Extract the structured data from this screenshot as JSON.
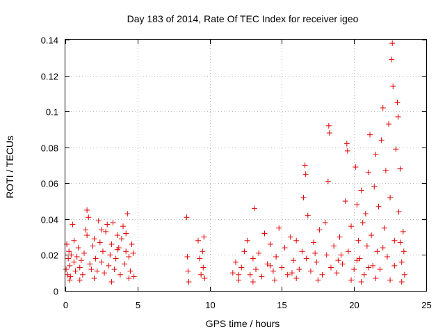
{
  "chart_data": {
    "type": "scatter",
    "title": "Day 183 of 2014, Rate Of TEC Index for receiver igeo",
    "xlabel": "GPS time / hours",
    "ylabel": "ROTI / TECUs",
    "xlim": [
      0,
      25
    ],
    "ylim": [
      0,
      0.14
    ],
    "xticks": [
      0,
      5,
      10,
      15,
      20,
      25
    ],
    "yticks": [
      0,
      0.02,
      0.04,
      0.06,
      0.08,
      0.1,
      0.12,
      0.14
    ],
    "xtick_labels": [
      "0",
      "5",
      "10",
      "15",
      "20",
      "25"
    ],
    "ytick_labels": [
      "0",
      "0.02",
      "0.04",
      "0.06",
      "0.08",
      "0.1",
      "0.12",
      "0.14"
    ],
    "grid": true,
    "marker": "+",
    "marker_color": "#e00000",
    "series": [
      {
        "name": "ROTI",
        "points": [
          [
            0.05,
            0.012
          ],
          [
            0.1,
            0.026
          ],
          [
            0.15,
            0.009
          ],
          [
            0.2,
            0.018
          ],
          [
            0.25,
            0.022
          ],
          [
            0.3,
            0.014
          ],
          [
            0.35,
            0.008
          ],
          [
            0.4,
            0.02
          ],
          [
            0.5,
            0.037
          ],
          [
            0.6,
            0.016
          ],
          [
            0.7,
            0.011
          ],
          [
            0.8,
            0.019
          ],
          [
            0.9,
            0.024
          ],
          [
            1.0,
            0.013
          ],
          [
            1.1,
            0.017
          ],
          [
            1.2,
            0.009
          ],
          [
            1.3,
            0.021
          ],
          [
            1.4,
            0.034
          ],
          [
            1.5,
            0.045
          ],
          [
            1.6,
            0.041
          ],
          [
            1.7,
            0.015
          ],
          [
            1.8,
            0.012
          ],
          [
            1.9,
            0.025
          ],
          [
            2.0,
            0.029
          ],
          [
            2.1,
            0.018
          ],
          [
            2.2,
            0.011
          ],
          [
            2.3,
            0.039
          ],
          [
            2.4,
            0.027
          ],
          [
            2.5,
            0.016
          ],
          [
            2.6,
            0.022
          ],
          [
            2.7,
            0.01
          ],
          [
            2.8,
            0.033
          ],
          [
            2.9,
            0.037
          ],
          [
            3.0,
            0.014
          ],
          [
            3.1,
            0.02
          ],
          [
            3.2,
            0.026
          ],
          [
            3.3,
            0.038
          ],
          [
            3.4,
            0.012
          ],
          [
            3.5,
            0.018
          ],
          [
            3.6,
            0.031
          ],
          [
            3.7,
            0.024
          ],
          [
            3.8,
            0.009
          ],
          [
            3.9,
            0.029
          ],
          [
            4.0,
            0.036
          ],
          [
            4.1,
            0.015
          ],
          [
            4.2,
            0.022
          ],
          [
            4.3,
            0.043
          ],
          [
            4.4,
            0.019
          ],
          [
            4.5,
            0.011
          ],
          [
            4.6,
            0.026
          ],
          [
            4.7,
            0.021
          ],
          [
            4.75,
            0.008
          ],
          [
            0.3,
            0.006
          ],
          [
            1.0,
            0.006
          ],
          [
            2.0,
            0.007
          ],
          [
            3.2,
            0.005
          ],
          [
            4.4,
            0.007
          ],
          [
            0.6,
            0.028
          ],
          [
            1.5,
            0.031
          ],
          [
            2.5,
            0.034
          ],
          [
            3.6,
            0.023
          ],
          [
            4.2,
            0.032
          ],
          [
            8.4,
            0.041
          ],
          [
            8.45,
            0.019
          ],
          [
            8.5,
            0.011
          ],
          [
            8.55,
            0.005
          ],
          [
            9.2,
            0.028
          ],
          [
            9.3,
            0.018
          ],
          [
            9.4,
            0.009
          ],
          [
            9.5,
            0.022
          ],
          [
            9.55,
            0.013
          ],
          [
            9.6,
            0.03
          ],
          [
            9.65,
            0.007
          ],
          [
            11.6,
            0.01
          ],
          [
            11.8,
            0.016
          ],
          [
            12.0,
            0.006
          ],
          [
            12.2,
            0.013
          ],
          [
            12.4,
            0.022
          ],
          [
            12.6,
            0.028
          ],
          [
            12.8,
            0.009
          ],
          [
            13.0,
            0.018
          ],
          [
            13.1,
            0.046
          ],
          [
            13.2,
            0.012
          ],
          [
            13.4,
            0.021
          ],
          [
            13.6,
            0.008
          ],
          [
            13.8,
            0.032
          ],
          [
            14.0,
            0.015
          ],
          [
            14.2,
            0.026
          ],
          [
            14.4,
            0.011
          ],
          [
            14.6,
            0.019
          ],
          [
            14.8,
            0.035
          ],
          [
            15.0,
            0.013
          ],
          [
            15.2,
            0.024
          ],
          [
            15.4,
            0.009
          ],
          [
            15.6,
            0.03
          ],
          [
            15.8,
            0.017
          ],
          [
            16.0,
            0.028
          ],
          [
            16.2,
            0.012
          ],
          [
            16.4,
            0.022
          ],
          [
            16.5,
            0.052
          ],
          [
            16.6,
            0.07
          ],
          [
            16.65,
            0.065
          ],
          [
            16.7,
            0.018
          ],
          [
            16.8,
            0.042
          ],
          [
            17.0,
            0.011
          ],
          [
            17.2,
            0.027
          ],
          [
            17.4,
            0.016
          ],
          [
            17.6,
            0.034
          ],
          [
            17.8,
            0.009
          ],
          [
            18.0,
            0.038
          ],
          [
            18.1,
            0.02
          ],
          [
            18.2,
            0.061
          ],
          [
            18.25,
            0.092
          ],
          [
            18.3,
            0.088
          ],
          [
            18.4,
            0.013
          ],
          [
            18.6,
            0.025
          ],
          [
            18.8,
            0.01
          ],
          [
            19.0,
            0.03
          ],
          [
            19.2,
            0.015
          ],
          [
            19.4,
            0.05
          ],
          [
            19.5,
            0.082
          ],
          [
            19.55,
            0.078
          ],
          [
            19.6,
            0.022
          ],
          [
            19.8,
            0.036
          ],
          [
            20.0,
            0.012
          ],
          [
            20.1,
            0.069
          ],
          [
            20.2,
            0.048
          ],
          [
            20.3,
            0.028
          ],
          [
            20.4,
            0.018
          ],
          [
            20.5,
            0.056
          ],
          [
            20.6,
            0.038
          ],
          [
            20.7,
            0.009
          ],
          [
            20.8,
            0.043
          ],
          [
            20.9,
            0.025
          ],
          [
            21.0,
            0.066
          ],
          [
            21.1,
            0.087
          ],
          [
            21.2,
            0.031
          ],
          [
            21.3,
            0.014
          ],
          [
            21.4,
            0.058
          ],
          [
            21.5,
            0.076
          ],
          [
            21.6,
            0.022
          ],
          [
            21.7,
            0.047
          ],
          [
            21.8,
            0.012
          ],
          [
            21.9,
            0.084
          ],
          [
            22.0,
            0.102
          ],
          [
            22.1,
            0.035
          ],
          [
            22.2,
            0.067
          ],
          [
            22.3,
            0.019
          ],
          [
            22.4,
            0.093
          ],
          [
            22.5,
            0.052
          ],
          [
            22.6,
            0.129
          ],
          [
            22.65,
            0.138
          ],
          [
            22.7,
            0.114
          ],
          [
            22.8,
            0.028
          ],
          [
            22.9,
            0.079
          ],
          [
            23.0,
            0.105
          ],
          [
            23.05,
            0.097
          ],
          [
            23.1,
            0.044
          ],
          [
            23.2,
            0.068
          ],
          [
            23.3,
            0.016
          ],
          [
            23.4,
            0.033
          ],
          [
            23.45,
            0.022
          ],
          [
            23.5,
            0.009
          ],
          [
            19.8,
            0.006
          ],
          [
            20.5,
            0.005
          ],
          [
            21.5,
            0.007
          ],
          [
            22.5,
            0.006
          ],
          [
            23.3,
            0.005
          ],
          [
            17.5,
            0.006
          ],
          [
            16.0,
            0.007
          ],
          [
            14.5,
            0.006
          ],
          [
            13.0,
            0.005
          ],
          [
            12.0,
            0.009
          ],
          [
            20.2,
            0.017
          ],
          [
            21.0,
            0.013
          ],
          [
            22.0,
            0.024
          ],
          [
            22.8,
            0.014
          ],
          [
            23.2,
            0.027
          ],
          [
            19.1,
            0.02
          ],
          [
            18.9,
            0.017
          ],
          [
            17.3,
            0.021
          ],
          [
            15.7,
            0.01
          ],
          [
            14.2,
            0.014
          ]
        ]
      }
    ]
  }
}
